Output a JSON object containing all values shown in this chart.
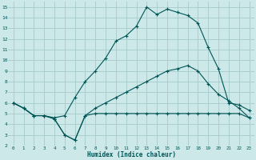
{
  "xlabel": "Humidex (Indice chaleur)",
  "bg_color": "#cce8e8",
  "grid_color": "#aacece",
  "line_color": "#005555",
  "xlim": [
    -0.5,
    23.5
  ],
  "ylim": [
    2,
    15.5
  ],
  "xticks": [
    0,
    1,
    2,
    3,
    4,
    5,
    6,
    7,
    8,
    9,
    10,
    11,
    12,
    13,
    14,
    15,
    16,
    17,
    18,
    19,
    20,
    21,
    22,
    23
  ],
  "yticks": [
    2,
    3,
    4,
    5,
    6,
    7,
    8,
    9,
    10,
    11,
    12,
    13,
    14,
    15
  ],
  "line1_x": [
    0,
    1,
    2,
    3,
    4,
    5,
    6,
    7,
    8,
    9,
    10,
    11,
    12,
    13,
    14,
    15,
    16,
    17,
    18,
    19,
    20,
    21,
    22,
    23
  ],
  "line1_y": [
    6.0,
    5.5,
    4.8,
    4.8,
    4.6,
    4.8,
    6.5,
    8.0,
    9.0,
    10.2,
    11.8,
    12.3,
    13.2,
    15.0,
    14.3,
    14.8,
    14.5,
    14.2,
    13.5,
    11.2,
    9.2,
    6.0,
    5.8,
    5.3
  ],
  "line2_x": [
    0,
    1,
    2,
    3,
    4,
    5,
    6,
    7,
    8,
    9,
    10,
    11,
    12,
    13,
    14,
    15,
    16,
    17,
    18,
    19,
    20,
    21,
    22,
    23
  ],
  "line2_y": [
    6.0,
    5.5,
    4.8,
    4.8,
    4.5,
    3.0,
    2.5,
    4.8,
    5.0,
    5.0,
    5.0,
    5.0,
    5.0,
    5.0,
    5.0,
    5.0,
    5.0,
    5.0,
    5.0,
    5.0,
    5.0,
    5.0,
    5.0,
    4.6
  ],
  "line3_x": [
    0,
    1,
    2,
    3,
    4,
    5,
    6,
    7,
    8,
    9,
    10,
    11,
    12,
    13,
    14,
    15,
    16,
    17,
    18,
    19,
    20,
    21,
    22,
    23
  ],
  "line3_y": [
    6.0,
    5.5,
    4.8,
    4.8,
    4.5,
    3.0,
    2.5,
    4.8,
    5.5,
    6.0,
    6.5,
    7.0,
    7.5,
    8.0,
    8.5,
    9.0,
    9.2,
    9.5,
    9.0,
    7.8,
    6.8,
    6.2,
    5.5,
    4.6
  ]
}
